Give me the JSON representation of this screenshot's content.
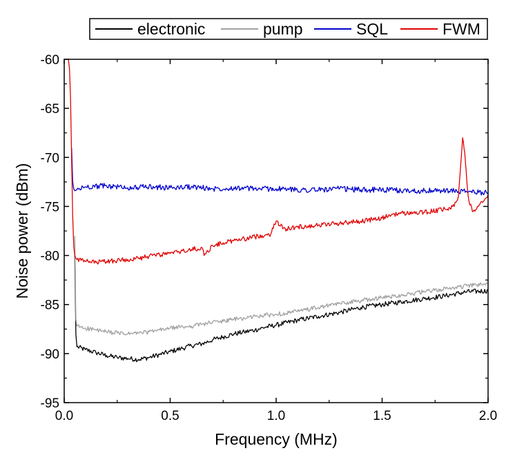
{
  "chart_data": {
    "type": "line",
    "xlabel": "Frequency (MHz)",
    "ylabel": "Noise power (dBm)",
    "xlim": [
      0.0,
      2.0
    ],
    "ylim": [
      -95,
      -60
    ],
    "xticks": [
      0.0,
      0.5,
      1.0,
      1.5,
      2.0
    ],
    "xtick_labels": [
      "0.0",
      "0.5",
      "1.0",
      "1.5",
      "2.0"
    ],
    "yticks": [
      -95,
      -90,
      -85,
      -80,
      -75,
      -70,
      -65,
      -60
    ],
    "ytick_labels": [
      "-95",
      "-90",
      "-85",
      "-80",
      "-75",
      "-70",
      "-65",
      "-60"
    ],
    "grid": false,
    "legend_position": "top",
    "series": [
      {
        "name": "electronic",
        "color": "#000000",
        "x": [
          0.05,
          0.055,
          0.06,
          0.1,
          0.15,
          0.2,
          0.25,
          0.3,
          0.35,
          0.4,
          0.45,
          0.5,
          0.55,
          0.6,
          0.65,
          0.7,
          0.75,
          0.8,
          0.85,
          0.9,
          0.95,
          1.0,
          1.1,
          1.2,
          1.3,
          1.4,
          1.5,
          1.6,
          1.7,
          1.8,
          1.9,
          2.0
        ],
        "y": [
          -80.0,
          -88.0,
          -89.3,
          -89.6,
          -89.9,
          -90.2,
          -90.4,
          -90.5,
          -90.6,
          -90.4,
          -90.1,
          -89.8,
          -89.5,
          -89.2,
          -89.0,
          -88.6,
          -88.3,
          -88.0,
          -87.8,
          -87.6,
          -87.3,
          -87.1,
          -86.6,
          -86.2,
          -85.8,
          -85.3,
          -85.0,
          -84.7,
          -84.4,
          -84.1,
          -83.7,
          -83.6
        ]
      },
      {
        "name": "pump",
        "color": "#a0a0a0",
        "x": [
          0.05,
          0.055,
          0.06,
          0.1,
          0.15,
          0.2,
          0.25,
          0.3,
          0.35,
          0.4,
          0.45,
          0.5,
          0.55,
          0.6,
          0.65,
          0.7,
          0.75,
          0.8,
          0.85,
          0.9,
          0.95,
          1.0,
          1.1,
          1.2,
          1.3,
          1.4,
          1.5,
          1.6,
          1.7,
          1.8,
          1.9,
          2.0
        ],
        "y": [
          -78.0,
          -86.5,
          -87.2,
          -87.4,
          -87.6,
          -87.8,
          -87.9,
          -88.0,
          -87.9,
          -87.8,
          -87.6,
          -87.4,
          -87.3,
          -87.2,
          -87.0,
          -86.8,
          -86.7,
          -86.5,
          -86.4,
          -86.2,
          -86.1,
          -86.0,
          -85.7,
          -85.3,
          -84.9,
          -84.6,
          -84.3,
          -84.0,
          -83.7,
          -83.4,
          -83.1,
          -82.9
        ]
      },
      {
        "name": "SQL",
        "color": "#0000cc",
        "x": [
          0.035,
          0.04,
          0.045,
          0.05,
          0.06,
          0.1,
          0.2,
          0.3,
          0.4,
          0.5,
          0.6,
          0.7,
          0.8,
          0.9,
          1.0,
          1.1,
          1.2,
          1.3,
          1.4,
          1.5,
          1.6,
          1.7,
          1.8,
          1.9,
          2.0
        ],
        "y": [
          -69.0,
          -72.5,
          -73.2,
          -73.4,
          -73.3,
          -73.0,
          -72.9,
          -73.1,
          -73.0,
          -73.1,
          -73.0,
          -73.2,
          -73.1,
          -73.2,
          -73.2,
          -73.3,
          -73.3,
          -73.2,
          -73.3,
          -73.3,
          -73.4,
          -73.4,
          -73.4,
          -73.5,
          -73.6
        ]
      },
      {
        "name": "FWM",
        "color": "#e00000",
        "x": [
          0.02,
          0.025,
          0.03,
          0.035,
          0.04,
          0.045,
          0.05,
          0.055,
          0.06,
          0.1,
          0.15,
          0.2,
          0.25,
          0.3,
          0.35,
          0.4,
          0.45,
          0.5,
          0.55,
          0.6,
          0.65,
          0.66,
          0.7,
          0.75,
          0.8,
          0.85,
          0.9,
          0.95,
          0.975,
          0.99,
          1.0,
          1.02,
          1.05,
          1.1,
          1.15,
          1.2,
          1.3,
          1.4,
          1.5,
          1.55,
          1.6,
          1.7,
          1.8,
          1.84,
          1.86,
          1.87,
          1.88,
          1.89,
          1.9,
          1.91,
          1.93,
          1.95,
          1.97,
          2.0
        ],
        "y": [
          -60.0,
          -61.0,
          -64.0,
          -70.0,
          -76.0,
          -79.0,
          -80.0,
          -80.3,
          -80.4,
          -80.6,
          -80.7,
          -80.6,
          -80.5,
          -80.4,
          -80.3,
          -80.1,
          -79.9,
          -79.8,
          -79.6,
          -79.4,
          -79.2,
          -80.0,
          -79.0,
          -78.7,
          -78.5,
          -78.3,
          -78.1,
          -77.9,
          -77.8,
          -76.8,
          -76.5,
          -77.0,
          -77.3,
          -77.1,
          -77.0,
          -76.9,
          -76.7,
          -76.5,
          -76.2,
          -75.8,
          -75.7,
          -75.6,
          -75.3,
          -75.0,
          -74.0,
          -71.0,
          -68.0,
          -69.5,
          -72.5,
          -74.5,
          -75.5,
          -75.0,
          -74.5,
          -73.8
        ]
      }
    ]
  }
}
